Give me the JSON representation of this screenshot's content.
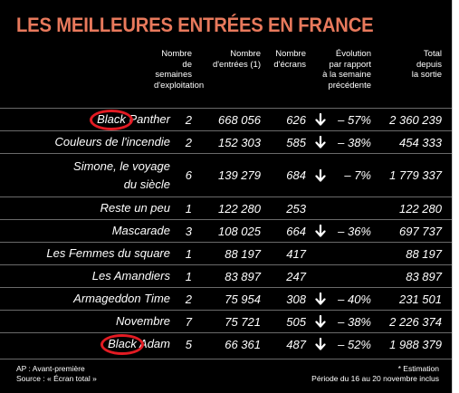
{
  "title": "LES MEILLEURES ENTRÉES EN FRANCE",
  "headers": {
    "weeks": "Nombre\nde semaines\nd'exploitation",
    "entries": "Nombre\nd'entrées (1)",
    "screens": "Nombre\nd'écrans",
    "evolution": "Évolution\npar rapport\nà la semaine\nprécédente",
    "total": "Total\ndepuis\nla sortie"
  },
  "rows": [
    {
      "title": "Black Panther",
      "weeks": "2",
      "entries": "668 056",
      "screens": "626",
      "arrow": true,
      "evolution": "– 57%",
      "total": "2 360 239",
      "highlight": "Black"
    },
    {
      "title": "Couleurs de l'incendie",
      "weeks": "2",
      "entries": "152 303",
      "screens": "585",
      "arrow": true,
      "evolution": "– 38%",
      "total": "454 333"
    },
    {
      "title": "Simone, le voyage\ndu siècle",
      "weeks": "6",
      "entries": "139 279",
      "screens": "684",
      "arrow": true,
      "evolution": "– 7%",
      "total": "1 779 337"
    },
    {
      "title": "Reste un peu",
      "weeks": "1",
      "entries": "122 280",
      "screens": "253",
      "arrow": false,
      "evolution": "",
      "total": "122 280"
    },
    {
      "title": "Mascarade",
      "weeks": "3",
      "entries": "108 025",
      "screens": "664",
      "arrow": true,
      "evolution": "– 36%",
      "total": "697 737"
    },
    {
      "title": "Les Femmes du square",
      "weeks": "1",
      "entries": "88 197",
      "screens": "417",
      "arrow": false,
      "evolution": "",
      "total": "88 197"
    },
    {
      "title": "Les Amandiers",
      "weeks": "1",
      "entries": "83 897",
      "screens": "247",
      "arrow": false,
      "evolution": "",
      "total": "83 897"
    },
    {
      "title": "Armageddon Time",
      "weeks": "2",
      "entries": "75 954",
      "screens": "308",
      "arrow": true,
      "evolution": "– 40%",
      "total": "231 501"
    },
    {
      "title": "Novembre",
      "weeks": "7",
      "entries": "75 721",
      "screens": "505",
      "arrow": true,
      "evolution": "– 38%",
      "total": "2 226 374"
    },
    {
      "title": "Black Adam",
      "weeks": "5",
      "entries": "66 361",
      "screens": "487",
      "arrow": true,
      "evolution": "– 52%",
      "total": "1 988 379",
      "highlight": "Black"
    }
  ],
  "footer": {
    "left": "AP : Avant-première\nSource : « Écran total »",
    "right": "* Estimation\nPériode du 16 au 20 novembre inclus"
  },
  "colors": {
    "title": "#e8795c",
    "circle": "#e31b23",
    "background": "#000000"
  }
}
